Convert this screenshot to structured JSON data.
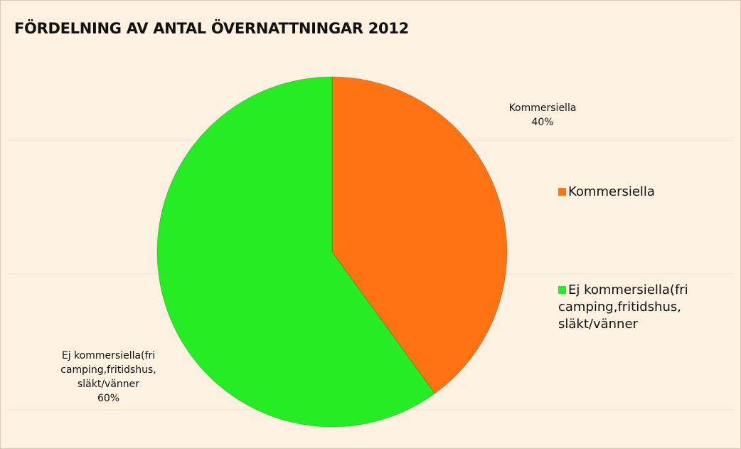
{
  "chart_data": {
    "type": "pie",
    "title": "FÖRDELNING AV ANTAL ÖVERNATTNINGAR 2012",
    "categories": [
      "Kommersiella",
      "Ej kommersiella(fri camping,fritidshus, släkt/vänner"
    ],
    "values": [
      40,
      60
    ],
    "value_labels": [
      "40%",
      "60%"
    ],
    "colors": [
      "#ff7312",
      "#25ec25"
    ],
    "legend": "right"
  }
}
